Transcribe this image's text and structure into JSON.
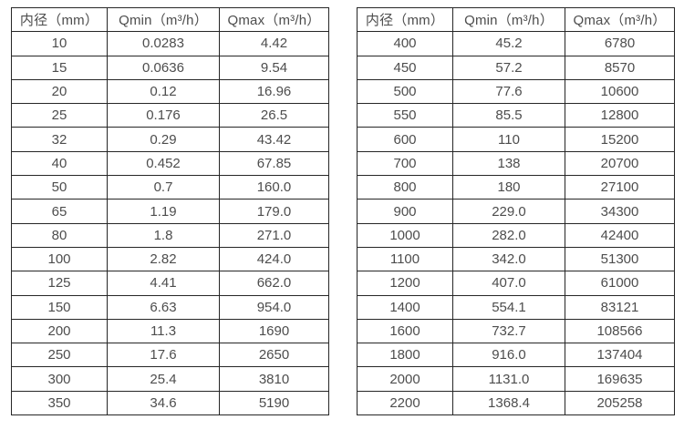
{
  "page": {
    "background": "#ffffff",
    "text_color": "#4d4d4d",
    "border_color": "#262626"
  },
  "chart_data": [
    {
      "type": "table",
      "columns": [
        "内径（mm）",
        "Qmin（m³/h）",
        "Qmax（m³/h）"
      ],
      "rows": [
        [
          "10",
          "0.0283",
          "4.42"
        ],
        [
          "15",
          "0.0636",
          "9.54"
        ],
        [
          "20",
          "0.12",
          "16.96"
        ],
        [
          "25",
          "0.176",
          "26.5"
        ],
        [
          "32",
          "0.29",
          "43.42"
        ],
        [
          "40",
          "0.452",
          "67.85"
        ],
        [
          "50",
          "0.7",
          "160.0"
        ],
        [
          "65",
          "1.19",
          "179.0"
        ],
        [
          "80",
          "1.8",
          "271.0"
        ],
        [
          "100",
          "2.82",
          "424.0"
        ],
        [
          "125",
          "4.41",
          "662.0"
        ],
        [
          "150",
          "6.63",
          "954.0"
        ],
        [
          "200",
          "11.3",
          "1690"
        ],
        [
          "250",
          "17.6",
          "2650"
        ],
        [
          "300",
          "25.4",
          "3810"
        ],
        [
          "350",
          "34.6",
          "5190"
        ]
      ]
    },
    {
      "type": "table",
      "columns": [
        "内径（mm）",
        "Qmin（m³/h）",
        "Qmax（m³/h）"
      ],
      "rows": [
        [
          "400",
          "45.2",
          "6780"
        ],
        [
          "450",
          "57.2",
          "8570"
        ],
        [
          "500",
          "77.6",
          "10600"
        ],
        [
          "550",
          "85.5",
          "12800"
        ],
        [
          "600",
          "110",
          "15200"
        ],
        [
          "700",
          "138",
          "20700"
        ],
        [
          "800",
          "180",
          "27100"
        ],
        [
          "900",
          "229.0",
          "34300"
        ],
        [
          "1000",
          "282.0",
          "42400"
        ],
        [
          "1100",
          "342.0",
          "51300"
        ],
        [
          "1200",
          "407.0",
          "61000"
        ],
        [
          "1400",
          "554.1",
          "83121"
        ],
        [
          "1600",
          "732.7",
          "108566"
        ],
        [
          "1800",
          "916.0",
          "137404"
        ],
        [
          "2000",
          "1131.0",
          "169635"
        ],
        [
          "2200",
          "1368.4",
          "205258"
        ]
      ]
    }
  ]
}
